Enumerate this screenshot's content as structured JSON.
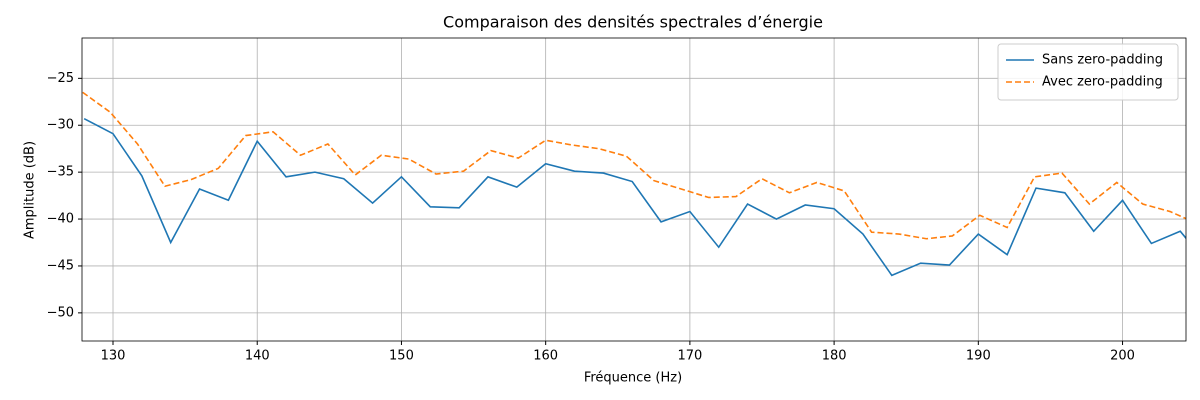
{
  "chart_data": {
    "type": "line",
    "title": "Comparaison des densités spectrales d’énergie",
    "xlabel": "Fréquence (Hz)",
    "ylabel": "Amplitude (dB)",
    "xlim": [
      127.85,
      204.4
    ],
    "ylim": [
      -53,
      -20.7
    ],
    "xticks": [
      130,
      140,
      150,
      160,
      170,
      180,
      190,
      200
    ],
    "yticks": [
      {
        "value": -25,
        "label": "−25"
      },
      {
        "value": -30,
        "label": "−30"
      },
      {
        "value": -35,
        "label": "−35"
      },
      {
        "value": -40,
        "label": "−40"
      },
      {
        "value": -45,
        "label": "−45"
      },
      {
        "value": -50,
        "label": "−50"
      }
    ],
    "grid": true,
    "legend": "upper right",
    "series": [
      {
        "name": "Sans zero-padding",
        "color": "#1f77b4",
        "dash": "solid",
        "x": [
          128,
          130,
          132,
          134,
          136,
          138,
          140,
          142,
          144,
          146,
          148,
          150,
          152,
          154,
          156,
          158,
          160,
          162,
          164,
          166,
          168,
          170,
          172,
          174,
          176,
          178,
          180,
          182,
          184,
          186,
          188,
          190,
          192,
          194,
          196,
          198,
          200,
          202,
          204,
          206
        ],
        "values": [
          -29.3,
          -30.9,
          -35.4,
          -42.5,
          -36.8,
          -38.0,
          -31.7,
          -35.5,
          -35.0,
          -35.7,
          -38.3,
          -35.5,
          -38.7,
          -38.8,
          -35.5,
          -36.6,
          -34.1,
          -34.9,
          -35.1,
          -36.0,
          -40.3,
          -39.2,
          -43.0,
          -38.4,
          -40.0,
          -38.5,
          -38.9,
          -41.6,
          -46.0,
          -44.7,
          -44.9,
          -41.6,
          -43.8,
          -36.7,
          -37.2,
          -41.3,
          -38.0,
          -42.6,
          -41.3,
          -45.0
        ]
      },
      {
        "name": "Avec zero-padding",
        "color": "#ff7f0e",
        "dash": "dashed",
        "x": [
          127.9,
          129.8,
          131.7,
          133.6,
          135.4,
          137.3,
          139.2,
          141.1,
          143.0,
          144.9,
          146.8,
          148.6,
          150.5,
          152.4,
          154.3,
          156.2,
          158.1,
          160.0,
          161.8,
          163.7,
          165.6,
          167.5,
          169.4,
          171.3,
          173.2,
          175.0,
          176.9,
          178.8,
          180.7,
          182.6,
          184.5,
          186.4,
          188.2,
          190.1,
          192.0,
          193.9,
          195.8,
          197.7,
          199.6,
          201.4,
          203.3,
          205.2
        ],
        "values": [
          -26.5,
          -28.6,
          -32.0,
          -36.5,
          -35.8,
          -34.6,
          -31.1,
          -30.7,
          -33.2,
          -32.0,
          -35.3,
          -33.2,
          -33.6,
          -35.2,
          -34.9,
          -32.7,
          -33.5,
          -31.6,
          -32.1,
          -32.5,
          -33.3,
          -35.9,
          -36.8,
          -37.7,
          -37.6,
          -35.7,
          -37.2,
          -36.1,
          -37.0,
          -41.4,
          -41.6,
          -42.1,
          -41.8,
          -39.6,
          -40.9,
          -35.5,
          -35.1,
          -38.4,
          -36.1,
          -38.4,
          -39.2,
          -40.5
        ]
      }
    ]
  }
}
